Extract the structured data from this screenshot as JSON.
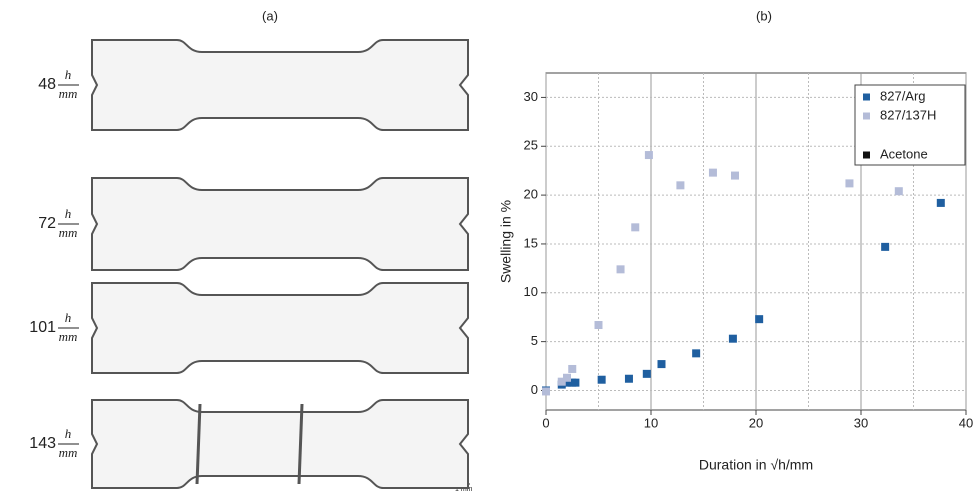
{
  "panel_a": {
    "label": "(a)",
    "specimens": [
      {
        "value": "48",
        "numerator": "h",
        "denominator": "mm"
      },
      {
        "value": "72",
        "numerator": "h",
        "denominator": "mm"
      },
      {
        "value": "101",
        "numerator": "h",
        "denominator": "mm"
      },
      {
        "value": "143",
        "numerator": "h",
        "denominator": "mm"
      }
    ],
    "scale_bar": "1 mm"
  },
  "chart_data": {
    "type": "scatter",
    "title": "(b)",
    "x_label": "Duration in √h/mm",
    "y_label": "Swelling in %",
    "xlim": [
      0,
      40
    ],
    "xticks": [
      0,
      10,
      20,
      30,
      40
    ],
    "ylim": [
      -2,
      32.5
    ],
    "yticks": [
      0,
      5,
      10,
      15,
      20,
      25,
      30
    ],
    "grid": true,
    "legend": "upper right",
    "series": [
      {
        "name": "827/Arg",
        "color": "#1f5fa0",
        "x": [
          0,
          1.5,
          2,
          2.5,
          2.8,
          5.3,
          7.9,
          9.6,
          11,
          14.3,
          17.8,
          20.3,
          32.3,
          37.6
        ],
        "values": [
          0,
          0.6,
          0.8,
          0.8,
          0.8,
          1.1,
          1.2,
          1.7,
          2.7,
          3.8,
          5.3,
          7.3,
          14.7,
          19.2
        ]
      },
      {
        "name": "827/137H",
        "color": "#b4bcd8",
        "x": [
          0,
          1.5,
          2,
          2.5,
          5,
          7.1,
          8.5,
          9.8,
          12.8,
          15.9,
          18,
          28.9,
          33.6
        ],
        "values": [
          -0.1,
          0.9,
          1.3,
          2.2,
          6.7,
          12.4,
          16.7,
          24.1,
          21,
          22.3,
          22,
          21.2,
          20.4
        ]
      },
      {
        "name": "Acetone",
        "color": "#111111",
        "x": [],
        "values": []
      }
    ]
  }
}
